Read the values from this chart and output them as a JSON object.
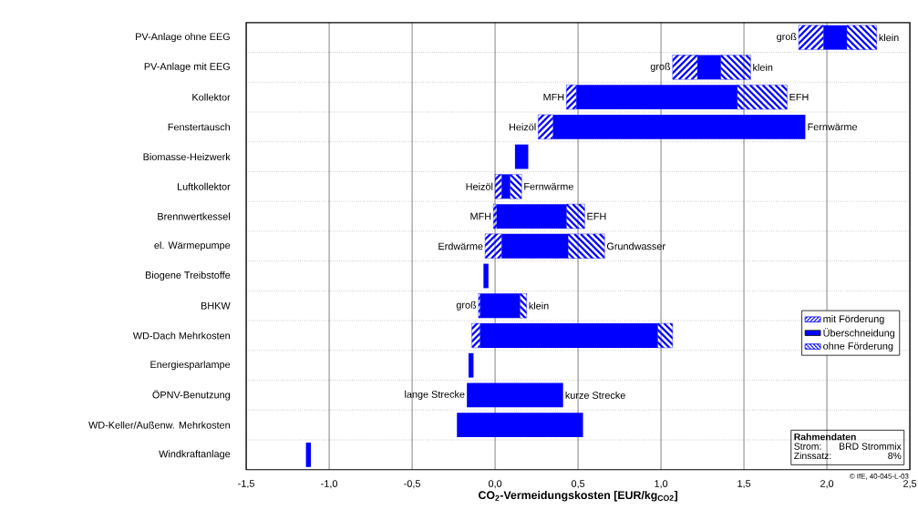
{
  "chart_data": {
    "type": "bar",
    "orientation": "horizontal",
    "categories": [
      "PV-Anlage ohne EEG",
      "PV-Anlage mit EEG",
      "Kollektor",
      "Fenstertausch",
      "Biomasse-Heizwerk",
      "Luftkollektor",
      "Brennwertkessel",
      "el. Wärmepumpe",
      "Biogene Treibstoffe",
      "BHKW",
      "WD-Dach Mehrkosten",
      "Energiesparlampe",
      "ÖPNV-Benutzung",
      "WD-Keller/Außenw. Mehrkosten",
      "Windkraftanlage"
    ],
    "series": [
      {
        "name": "mit Förderung",
        "color": "#0000ff",
        "base": [
          1.83,
          1.07,
          0.43,
          0.26,
          null,
          0.0,
          -0.01,
          -0.06,
          null,
          -0.1,
          -0.14,
          null,
          null,
          null,
          null
        ],
        "values": [
          0.15,
          0.15,
          0.06,
          0.09,
          null,
          0.04,
          0.02,
          0.1,
          null,
          0.01,
          0.05,
          null,
          null,
          null,
          null
        ]
      },
      {
        "name": "Überschneidung",
        "color": "#0000ff",
        "base": [
          1.98,
          1.22,
          0.49,
          0.35,
          0.12,
          0.04,
          0.01,
          0.04,
          -0.07,
          -0.09,
          -0.09,
          -0.16,
          -0.17,
          -0.23,
          -1.14
        ],
        "values": [
          0.14,
          0.14,
          0.97,
          1.52,
          0.08,
          0.05,
          0.42,
          0.4,
          0.03,
          0.24,
          1.07,
          0.03,
          0.58,
          0.76,
          0.03
        ]
      },
      {
        "name": "ohne Förderung",
        "color": "#0000ff",
        "base": [
          2.12,
          1.36,
          1.46,
          null,
          null,
          0.09,
          0.43,
          0.44,
          null,
          0.15,
          0.98,
          null,
          null,
          null,
          null
        ],
        "values": [
          0.18,
          0.18,
          0.3,
          null,
          null,
          0.07,
          0.11,
          0.22,
          null,
          0.04,
          0.09,
          null,
          null,
          null,
          null
        ]
      }
    ],
    "xlabel": "CO$_{2}$-Vermeidungskosten [EUR/kg$_{CO2}$]",
    "xlim": [
      -1.5,
      2.5
    ],
    "xticks": [
      {
        "value": -1.5,
        "label": "-1,5"
      },
      {
        "value": -1.0,
        "label": "-1,0"
      },
      {
        "value": -0.5,
        "label": "-0,5"
      },
      {
        "value": 0.0,
        "label": "0,0"
      },
      {
        "value": 0.5,
        "label": "0,5"
      },
      {
        "value": 1.0,
        "label": "1,0"
      },
      {
        "value": 1.5,
        "label": "1,5"
      },
      {
        "value": 2.0,
        "label": "2,0"
      },
      {
        "value": 2.5,
        "label": "2,5"
      }
    ],
    "grid": true,
    "legend": "bottom right",
    "annotations": [
      {
        "text": "groß",
        "x": 1.83,
        "y": "PV-Anlage ohne EEG"
      },
      {
        "text": "klein",
        "x": 2.3,
        "y": "PV-Anlage ohne EEG"
      },
      {
        "text": "groß",
        "x": 1.07,
        "y": "PV-Anlage mit EEG"
      },
      {
        "text": "klein",
        "x": 1.54,
        "y": "PV-Anlage mit EEG"
      },
      {
        "text": "MFH",
        "x": 0.43,
        "y": "Kollektor"
      },
      {
        "text": "EFH",
        "x": 1.76,
        "y": "Kollektor"
      },
      {
        "text": "Heizöl",
        "x": 0.26,
        "y": "Fenstertausch"
      },
      {
        "text": "Fernwärme",
        "x": 1.87,
        "y": "Fenstertausch"
      },
      {
        "text": "Heizöl",
        "x": 0.0,
        "y": "Luftkollektor"
      },
      {
        "text": "Fernwärme",
        "x": 0.16,
        "y": "Luftkollektor"
      },
      {
        "text": "MFH",
        "x": -0.01,
        "y": "Brennwertkessel"
      },
      {
        "text": "EFH",
        "x": 0.54,
        "y": "Brennwertkessel"
      },
      {
        "text": "Erdwärme",
        "x": -0.06,
        "y": "el. Wärmepumpe"
      },
      {
        "text": "Grundwasser",
        "x": 0.66,
        "y": "el. Wärmepumpe"
      },
      {
        "text": "groß",
        "x": -0.1,
        "y": "BHKW"
      },
      {
        "text": "klein",
        "x": 0.19,
        "y": "BHKW"
      },
      {
        "text": "lange Strecke",
        "x": -0.17,
        "y": "ÖPNV-Benutzung"
      },
      {
        "text": "kurze Strecke",
        "x": 0.41,
        "y": "ÖPNV-Benutzung"
      },
      "Rahmendaten",
      "Strom:",
      "BRD Strommix",
      "Zinssatz:",
      "8%",
      "© IfE, 40-045-L-03"
    ]
  }
}
